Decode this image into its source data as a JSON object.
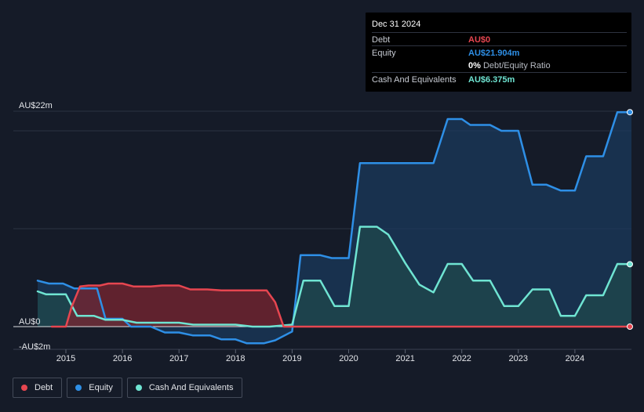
{
  "chart_data": {
    "type": "area",
    "x_unit": "year",
    "y_unit": "AU$m",
    "ylim": [
      -2,
      22
    ],
    "y_tick_labels": [
      {
        "value": 22,
        "label": "AU$22m"
      },
      {
        "value": 0,
        "label": "AU$0"
      },
      {
        "value": -2,
        "label": "-AU$2m"
      }
    ],
    "gridlines": [
      22,
      20,
      10
    ],
    "x_ticks": [
      2015,
      2016,
      2017,
      2018,
      2019,
      2020,
      2021,
      2022,
      2023,
      2024
    ],
    "xlim": [
      2014.5,
      2025.0
    ],
    "legend_position": "bottom-left",
    "series": [
      {
        "name": "Debt",
        "color": "#e64650",
        "fill": "#7a2530",
        "points": [
          [
            2014.75,
            0.0
          ],
          [
            2015.0,
            0.0
          ],
          [
            2015.1,
            2.0
          ],
          [
            2015.25,
            4.1
          ],
          [
            2015.4,
            4.2
          ],
          [
            2015.6,
            4.2
          ],
          [
            2015.75,
            4.4
          ],
          [
            2016.0,
            4.4
          ],
          [
            2016.2,
            4.1
          ],
          [
            2016.5,
            4.1
          ],
          [
            2016.7,
            4.2
          ],
          [
            2017.0,
            4.2
          ],
          [
            2017.2,
            3.8
          ],
          [
            2017.5,
            3.8
          ],
          [
            2017.75,
            3.7
          ],
          [
            2018.0,
            3.7
          ],
          [
            2018.3,
            3.7
          ],
          [
            2018.55,
            3.7
          ],
          [
            2018.7,
            2.5
          ],
          [
            2018.85,
            0.0
          ],
          [
            2019.0,
            0.0
          ],
          [
            2020.0,
            0.0
          ],
          [
            2021.0,
            0.0
          ],
          [
            2022.0,
            0.0
          ],
          [
            2023.0,
            0.0
          ],
          [
            2024.0,
            0.0
          ],
          [
            2025.0,
            0.0
          ]
        ]
      },
      {
        "name": "Equity",
        "color": "#2e8fe6",
        "fill": "#1a3a5e",
        "points": [
          [
            2014.5,
            4.7
          ],
          [
            2014.7,
            4.4
          ],
          [
            2014.95,
            4.4
          ],
          [
            2015.15,
            3.9
          ],
          [
            2015.55,
            3.9
          ],
          [
            2015.7,
            0.8
          ],
          [
            2016.0,
            0.8
          ],
          [
            2016.15,
            0.0
          ],
          [
            2016.5,
            0.0
          ],
          [
            2016.75,
            -0.6
          ],
          [
            2017.0,
            -0.6
          ],
          [
            2017.25,
            -0.9
          ],
          [
            2017.55,
            -0.9
          ],
          [
            2017.75,
            -1.3
          ],
          [
            2018.0,
            -1.3
          ],
          [
            2018.2,
            -1.7
          ],
          [
            2018.5,
            -1.7
          ],
          [
            2018.7,
            -1.4
          ],
          [
            2019.0,
            -0.5
          ],
          [
            2019.15,
            7.3
          ],
          [
            2019.5,
            7.3
          ],
          [
            2019.7,
            7.0
          ],
          [
            2020.0,
            7.0
          ],
          [
            2020.2,
            16.7
          ],
          [
            2020.5,
            16.7
          ],
          [
            2021.0,
            16.7
          ],
          [
            2021.5,
            16.7
          ],
          [
            2021.75,
            21.2
          ],
          [
            2022.0,
            21.2
          ],
          [
            2022.15,
            20.6
          ],
          [
            2022.5,
            20.6
          ],
          [
            2022.7,
            20.0
          ],
          [
            2023.0,
            20.0
          ],
          [
            2023.25,
            14.5
          ],
          [
            2023.5,
            14.5
          ],
          [
            2023.75,
            13.9
          ],
          [
            2024.0,
            13.9
          ],
          [
            2024.2,
            17.4
          ],
          [
            2024.5,
            17.4
          ],
          [
            2024.75,
            21.9
          ],
          [
            2025.0,
            21.904
          ]
        ]
      },
      {
        "name": "Cash And Equivalents",
        "color": "#6fe4d2",
        "fill": "#1f4a4c",
        "points": [
          [
            2014.5,
            3.6
          ],
          [
            2014.65,
            3.3
          ],
          [
            2015.0,
            3.3
          ],
          [
            2015.2,
            1.1
          ],
          [
            2015.5,
            1.1
          ],
          [
            2015.7,
            0.7
          ],
          [
            2016.0,
            0.7
          ],
          [
            2016.25,
            0.4
          ],
          [
            2016.5,
            0.4
          ],
          [
            2017.0,
            0.4
          ],
          [
            2017.25,
            0.2
          ],
          [
            2017.5,
            0.2
          ],
          [
            2018.0,
            0.2
          ],
          [
            2018.3,
            0.0
          ],
          [
            2018.6,
            0.0
          ],
          [
            2019.0,
            0.2
          ],
          [
            2019.2,
            4.7
          ],
          [
            2019.5,
            4.7
          ],
          [
            2019.75,
            2.1
          ],
          [
            2020.0,
            2.1
          ],
          [
            2020.2,
            10.2
          ],
          [
            2020.5,
            10.2
          ],
          [
            2020.7,
            9.4
          ],
          [
            2021.0,
            6.5
          ],
          [
            2021.25,
            4.3
          ],
          [
            2021.5,
            3.5
          ],
          [
            2021.75,
            6.4
          ],
          [
            2022.0,
            6.4
          ],
          [
            2022.2,
            4.7
          ],
          [
            2022.5,
            4.7
          ],
          [
            2022.75,
            2.1
          ],
          [
            2023.0,
            2.1
          ],
          [
            2023.25,
            3.8
          ],
          [
            2023.55,
            3.8
          ],
          [
            2023.75,
            1.1
          ],
          [
            2024.0,
            1.1
          ],
          [
            2024.2,
            3.2
          ],
          [
            2024.5,
            3.2
          ],
          [
            2024.75,
            6.4
          ],
          [
            2025.0,
            6.375
          ]
        ]
      }
    ]
  },
  "tooltip": {
    "date": "Dec 31 2024",
    "rows": [
      {
        "label": "Debt",
        "value": "AU$0",
        "color": "#e64650"
      },
      {
        "label": "Equity",
        "value": "AU$21.904m",
        "color": "#2e8fe6"
      },
      {
        "label": "",
        "value": "0%",
        "suffix": "Debt/Equity Ratio",
        "color": "#ffffff"
      },
      {
        "label": "Cash And Equivalents",
        "value": "AU$6.375m",
        "color": "#6fe4d2"
      }
    ]
  },
  "legend": [
    {
      "label": "Debt",
      "color": "#e64650"
    },
    {
      "label": "Equity",
      "color": "#2e8fe6"
    },
    {
      "label": "Cash And Equivalents",
      "color": "#6fe4d2"
    }
  ]
}
